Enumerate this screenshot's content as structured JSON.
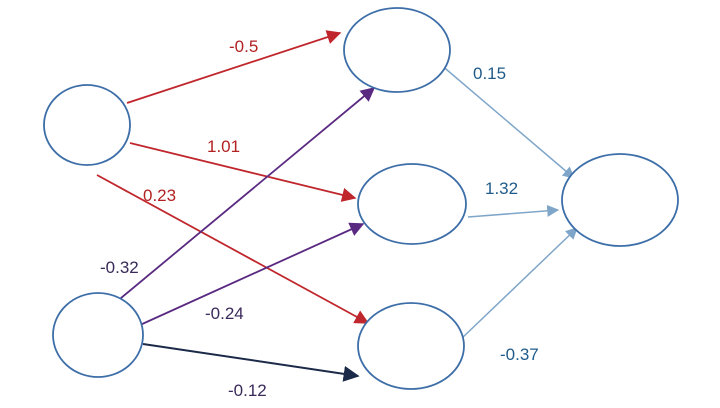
{
  "colors": {
    "input_hidden_1": "#c0272d",
    "input_hidden_2": "#5a2a82",
    "input_hidden_2_bottom": "#1c2a4a",
    "hidden_output": "#7fa6c9",
    "node_stroke": "#3d6ea8",
    "label_red": "#b22222",
    "label_purple": "#3a2a5a",
    "label_blue": "#1f5b8a"
  },
  "edges": [
    {
      "from": "input-1",
      "to": "hidden-1",
      "weight": "-0.5"
    },
    {
      "from": "input-1",
      "to": "hidden-2",
      "weight": "1.01"
    },
    {
      "from": "input-1",
      "to": "hidden-3",
      "weight": "0.23"
    },
    {
      "from": "input-2",
      "to": "hidden-1",
      "weight": "-0.32"
    },
    {
      "from": "input-2",
      "to": "hidden-2",
      "weight": "-0.24"
    },
    {
      "from": "input-2",
      "to": "hidden-3",
      "weight": "-0.12"
    },
    {
      "from": "hidden-1",
      "to": "output",
      "weight": "0.15"
    },
    {
      "from": "hidden-2",
      "to": "output",
      "weight": "1.32"
    },
    {
      "from": "hidden-3",
      "to": "output",
      "weight": "-0.37"
    }
  ]
}
